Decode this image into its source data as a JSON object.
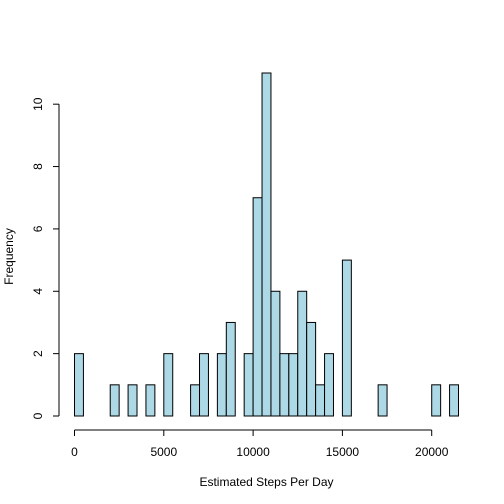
{
  "chart_data": {
    "type": "bar",
    "title": "",
    "xlabel": "Estimated Steps Per Day",
    "ylabel": "Frequency",
    "bin_width": 500,
    "xlim": [
      0,
      21500
    ],
    "ylim": [
      0,
      11
    ],
    "x_ticks": [
      0,
      5000,
      10000,
      15000,
      20000
    ],
    "y_ticks": [
      0,
      2,
      4,
      6,
      8,
      10
    ],
    "bar_color": "#add8e6",
    "bins": [
      {
        "start": 0,
        "end": 500,
        "count": 2
      },
      {
        "start": 2000,
        "end": 2500,
        "count": 1
      },
      {
        "start": 3000,
        "end": 3500,
        "count": 1
      },
      {
        "start": 4000,
        "end": 4500,
        "count": 1
      },
      {
        "start": 5000,
        "end": 5500,
        "count": 2
      },
      {
        "start": 6500,
        "end": 7000,
        "count": 1
      },
      {
        "start": 7000,
        "end": 7500,
        "count": 2
      },
      {
        "start": 8000,
        "end": 8500,
        "count": 2
      },
      {
        "start": 8500,
        "end": 9000,
        "count": 3
      },
      {
        "start": 9500,
        "end": 10000,
        "count": 2
      },
      {
        "start": 10000,
        "end": 10500,
        "count": 7
      },
      {
        "start": 10500,
        "end": 11000,
        "count": 11
      },
      {
        "start": 11000,
        "end": 11500,
        "count": 4
      },
      {
        "start": 11500,
        "end": 12000,
        "count": 2
      },
      {
        "start": 12000,
        "end": 12500,
        "count": 2
      },
      {
        "start": 12500,
        "end": 13000,
        "count": 4
      },
      {
        "start": 13000,
        "end": 13500,
        "count": 3
      },
      {
        "start": 13500,
        "end": 14000,
        "count": 1
      },
      {
        "start": 14000,
        "end": 14500,
        "count": 2
      },
      {
        "start": 15000,
        "end": 15500,
        "count": 5
      },
      {
        "start": 17000,
        "end": 17500,
        "count": 1
      },
      {
        "start": 20000,
        "end": 20500,
        "count": 1
      },
      {
        "start": 21000,
        "end": 21500,
        "count": 1
      }
    ]
  }
}
